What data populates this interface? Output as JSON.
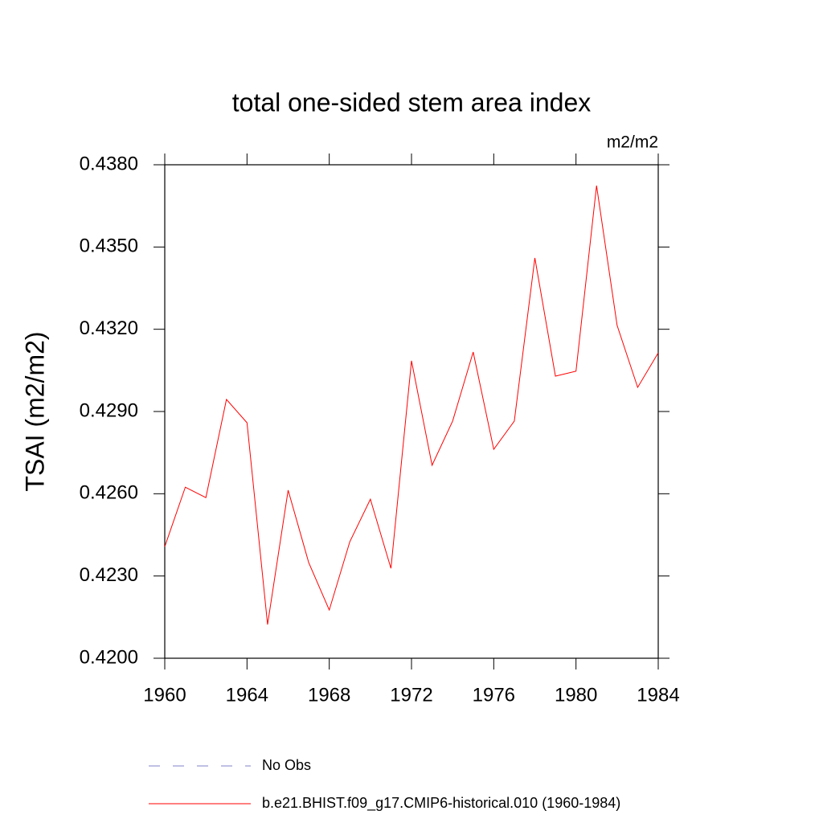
{
  "chart_data": {
    "type": "line",
    "title": "total one-sided stem area index",
    "units": "m2/m2",
    "y_label": "TSAI  (m2/m2)",
    "x": [
      1960,
      1961,
      1962,
      1963,
      1964,
      1965,
      1966,
      1967,
      1968,
      1969,
      1970,
      1971,
      1972,
      1973,
      1974,
      1975,
      1976,
      1977,
      1978,
      1979,
      1980,
      1981,
      1982,
      1983,
      1984
    ],
    "series": [
      {
        "name": "b.e21.BHIST.f09_g17.CMIP6-historical.010 (1960-1984)",
        "color": "#ff0000",
        "values": [
          0.42407,
          0.42624,
          0.42586,
          0.42944,
          0.42859,
          0.42123,
          0.42613,
          0.42349,
          0.42176,
          0.42425,
          0.4258,
          0.42328,
          0.43085,
          0.42704,
          0.42865,
          0.43117,
          0.42762,
          0.42865,
          0.4346,
          0.43029,
          0.43047,
          0.43724,
          0.43214,
          0.42988,
          0.43114
        ]
      }
    ],
    "reference_legend": {
      "name": "No Obs",
      "color": "#8080c8",
      "dashed": true
    },
    "xlim": [
      1960,
      1984
    ],
    "xticks": [
      1960,
      1964,
      1968,
      1972,
      1976,
      1980,
      1984
    ],
    "ylim": [
      0.42,
      0.438
    ],
    "yticks": [
      {
        "value": 0.42,
        "label": "0.4200"
      },
      {
        "value": 0.423,
        "label": "0.4230"
      },
      {
        "value": 0.426,
        "label": "0.4260"
      },
      {
        "value": 0.429,
        "label": "0.4290"
      },
      {
        "value": 0.432,
        "label": "0.4320"
      },
      {
        "value": 0.435,
        "label": "0.4350"
      },
      {
        "value": 0.438,
        "label": "0.4380"
      }
    ]
  }
}
